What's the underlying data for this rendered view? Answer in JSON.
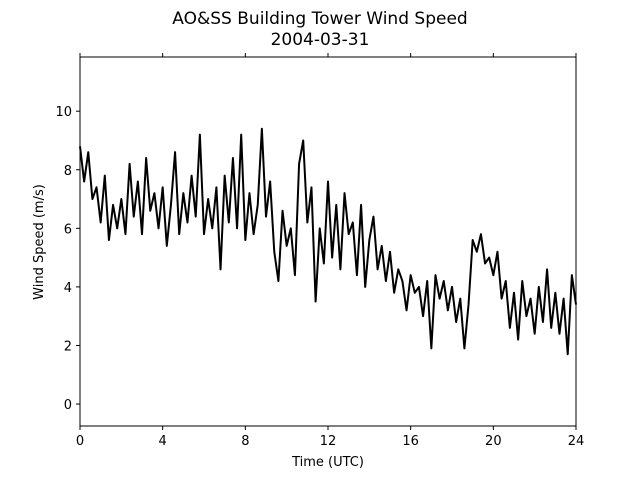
{
  "chart_data": {
    "type": "line",
    "title": "AO&SS Building Tower Wind Speed",
    "subtitle": "2004-03-31",
    "x_label": "Time (UTC)",
    "y_label": "Wind Speed (m/s)",
    "xlim": [
      0,
      24
    ],
    "xticks": [
      0,
      4,
      8,
      12,
      16,
      20,
      24
    ],
    "ylim": [
      -0.75,
      11.85
    ],
    "yticks": [
      0,
      2,
      4,
      6,
      8,
      10
    ],
    "x": [
      0,
      0.2,
      0.4,
      0.6,
      0.8,
      1,
      1.2,
      1.4,
      1.6,
      1.8,
      2,
      2.2,
      2.4,
      2.6,
      2.8,
      3,
      3.2,
      3.4,
      3.6,
      3.8,
      4,
      4.2,
      4.4,
      4.6,
      4.8,
      5,
      5.2,
      5.4,
      5.6,
      5.8,
      6,
      6.2,
      6.4,
      6.6,
      6.8,
      7,
      7.2,
      7.4,
      7.6,
      7.8,
      8,
      8.2,
      8.4,
      8.6,
      8.8,
      9,
      9.2,
      9.4,
      9.6,
      9.8,
      10,
      10.2,
      10.4,
      10.6,
      10.8,
      11,
      11.2,
      11.4,
      11.6,
      11.8,
      12,
      12.2,
      12.4,
      12.6,
      12.8,
      13,
      13.2,
      13.4,
      13.6,
      13.8,
      14,
      14.2,
      14.4,
      14.6,
      14.8,
      15,
      15.2,
      15.4,
      15.6,
      15.8,
      16,
      16.2,
      16.4,
      16.6,
      16.8,
      17,
      17.2,
      17.4,
      17.6,
      17.8,
      18,
      18.2,
      18.4,
      18.6,
      18.8,
      19,
      19.2,
      19.4,
      19.6,
      19.8,
      20,
      20.2,
      20.4,
      20.6,
      20.8,
      21,
      21.2,
      21.4,
      21.6,
      21.8,
      22,
      22.2,
      22.4,
      22.6,
      22.8,
      23,
      23.2,
      23.4,
      23.6,
      23.8,
      24
    ],
    "series": [
      {
        "color": "#000000",
        "values": [
          8.8,
          7.6,
          8.6,
          7.0,
          7.4,
          6.2,
          7.8,
          5.6,
          6.8,
          6.0,
          7.0,
          5.8,
          8.2,
          6.4,
          7.6,
          5.8,
          8.4,
          6.6,
          7.2,
          6.0,
          7.4,
          5.4,
          6.8,
          8.6,
          5.8,
          7.2,
          6.2,
          7.8,
          6.4,
          9.2,
          5.8,
          7.0,
          6.0,
          7.4,
          4.6,
          7.8,
          6.2,
          8.4,
          6.0,
          9.2,
          5.6,
          7.2,
          5.8,
          6.8,
          9.4,
          6.4,
          7.6,
          5.2,
          4.2,
          6.6,
          5.4,
          6.0,
          4.4,
          8.2,
          9.0,
          6.2,
          7.4,
          3.5,
          6.0,
          4.8,
          7.6,
          5.0,
          6.8,
          4.6,
          7.2,
          5.8,
          6.2,
          4.4,
          6.8,
          4.0,
          5.6,
          6.4,
          4.6,
          5.4,
          4.2,
          5.2,
          3.8,
          4.6,
          4.2,
          3.2,
          4.4,
          3.8,
          4.0,
          3.0,
          4.2,
          1.9,
          4.4,
          3.6,
          4.2,
          3.2,
          4.0,
          2.8,
          3.6,
          1.9,
          3.4,
          5.6,
          5.2,
          5.8,
          4.8,
          5.0,
          4.4,
          5.2,
          3.6,
          4.2,
          2.6,
          3.8,
          2.2,
          4.2,
          3.0,
          3.6,
          2.4,
          4.0,
          2.8,
          4.6,
          2.6,
          3.8,
          2.4,
          3.6,
          1.7,
          4.4,
          3.4
        ]
      }
    ]
  }
}
